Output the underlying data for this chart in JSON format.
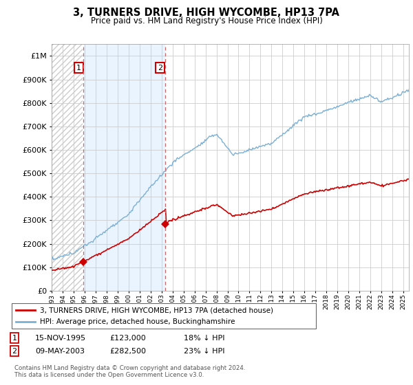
{
  "title": "3, TURNERS DRIVE, HIGH WYCOMBE, HP13 7PA",
  "subtitle": "Price paid vs. HM Land Registry's House Price Index (HPI)",
  "property_label": "3, TURNERS DRIVE, HIGH WYCOMBE, HP13 7PA (detached house)",
  "hpi_label": "HPI: Average price, detached house, Buckinghamshire",
  "footnote": "Contains HM Land Registry data © Crown copyright and database right 2024.\nThis data is licensed under the Open Government Licence v3.0.",
  "sale1_date": "15-NOV-1995",
  "sale1_price": 123000,
  "sale1_pct": "18% ↓ HPI",
  "sale1_x": 1995.875,
  "sale2_date": "09-MAY-2003",
  "sale2_price": 282500,
  "sale2_pct": "23% ↓ HPI",
  "sale2_x": 2003.36,
  "property_color": "#cc0000",
  "hpi_color": "#7bafd4",
  "marker_color": "#cc0000",
  "vline_color": "#cc6666",
  "grid_color": "#cccccc",
  "hatch_color": "#cccccc",
  "fill_color": "#ddeeff",
  "ylim": [
    0,
    1050000
  ],
  "xlim_start": 1993.0,
  "xlim_end": 2025.5
}
